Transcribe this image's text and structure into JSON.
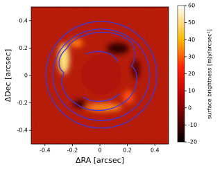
{
  "chart_data": {
    "type": "image",
    "xlabel": "ΔRA [arcsec]",
    "ylabel": "ΔDec [arcsec]",
    "xlim": [
      -0.5,
      0.5
    ],
    "ylim": [
      -0.5,
      0.5
    ],
    "xticks": [
      -0.4,
      -0.2,
      0,
      0.2,
      0.4
    ],
    "yticks": [
      -0.4,
      -0.2,
      0,
      0.2,
      0.4
    ],
    "colorbar": {
      "label": "surface brightness [mJy/arcsec²]",
      "lim": [
        -20,
        60
      ],
      "ticks": [
        -20,
        -10,
        0,
        10,
        20,
        30,
        40,
        50,
        60
      ]
    }
  }
}
